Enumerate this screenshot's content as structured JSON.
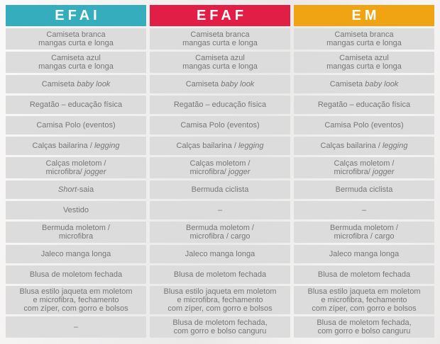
{
  "theme": {
    "page_background": "#f2f0ef",
    "cell_background": "#dcdcdc",
    "cell_text_color": "#767676",
    "header_text_color": "#ffffff"
  },
  "table": {
    "columns": [
      {
        "key": "efai",
        "label": "EFAI",
        "color": "#35adbc"
      },
      {
        "key": "efaf",
        "label": "EFAF",
        "color": "#e01e46"
      },
      {
        "key": "em",
        "label": "EM",
        "color": "#f0a414"
      }
    ],
    "rows": [
      {
        "cells": [
          [
            {
              "text": "Camiseta branca\nmangas curta e longa"
            }
          ],
          [
            {
              "text": "Camiseta branca\nmangas curta e longa"
            }
          ],
          [
            {
              "text": "Camiseta branca\nmangas curta e longa"
            }
          ]
        ]
      },
      {
        "cells": [
          [
            {
              "text": "Camiseta azul\nmangas curta e longa"
            }
          ],
          [
            {
              "text": "Camiseta azul\nmangas curta e longa"
            }
          ],
          [
            {
              "text": "Camiseta azul\nmangas curta e longa"
            }
          ]
        ]
      },
      {
        "cells": [
          [
            {
              "text": "Camiseta "
            },
            {
              "text": "baby look",
              "italic": true
            }
          ],
          [
            {
              "text": "Camiseta "
            },
            {
              "text": "baby look",
              "italic": true
            }
          ],
          [
            {
              "text": "Camiseta "
            },
            {
              "text": "baby look",
              "italic": true
            }
          ]
        ]
      },
      {
        "cells": [
          [
            {
              "text": "Regatão – educação física"
            }
          ],
          [
            {
              "text": "Regatão – educação física"
            }
          ],
          [
            {
              "text": "Regatão – educação física"
            }
          ]
        ]
      },
      {
        "cells": [
          [
            {
              "text": "Camisa Polo (eventos)"
            }
          ],
          [
            {
              "text": "Camisa Polo (eventos)"
            }
          ],
          [
            {
              "text": "Camisa Polo (eventos)"
            }
          ]
        ]
      },
      {
        "cells": [
          [
            {
              "text": "Calças bailarina / "
            },
            {
              "text": "legging",
              "italic": true
            }
          ],
          [
            {
              "text": "Calças bailarina / "
            },
            {
              "text": "legging",
              "italic": true
            }
          ],
          [
            {
              "text": "Calças bailarina / "
            },
            {
              "text": "legging",
              "italic": true
            }
          ]
        ]
      },
      {
        "cells": [
          [
            {
              "text": "Calças moletom /\nmicrofibra/ "
            },
            {
              "text": "jogger",
              "italic": true
            }
          ],
          [
            {
              "text": "Calças moletom /\nmicrofibra/ "
            },
            {
              "text": "jogger",
              "italic": true
            }
          ],
          [
            {
              "text": "Calças moletom /\nmicrofibra/ "
            },
            {
              "text": "jogger",
              "italic": true
            }
          ]
        ]
      },
      {
        "cells": [
          [
            {
              "text": "Short",
              "italic": true
            },
            {
              "text": "-saia"
            }
          ],
          [
            {
              "text": "Bermuda ciclista"
            }
          ],
          [
            {
              "text": "Bermuda ciclista"
            }
          ]
        ]
      },
      {
        "cells": [
          [
            {
              "text": "Vestido"
            }
          ],
          [
            {
              "text": "–"
            }
          ],
          [
            {
              "text": "–"
            }
          ]
        ]
      },
      {
        "cells": [
          [
            {
              "text": "Bermuda moletom /\nmicrofibra"
            }
          ],
          [
            {
              "text": "Bermuda moletom /\nmicrofibra / cargo"
            }
          ],
          [
            {
              "text": "Bermuda moletom /\nmicrofibra / cargo"
            }
          ]
        ]
      },
      {
        "cells": [
          [
            {
              "text": "Jaleco manga longa"
            }
          ],
          [
            {
              "text": "Jaleco manga longa"
            }
          ],
          [
            {
              "text": "Jaleco manga longa"
            }
          ]
        ]
      },
      {
        "cells": [
          [
            {
              "text": "Blusa de moletom fechada"
            }
          ],
          [
            {
              "text": "Blusa de moletom fechada"
            }
          ],
          [
            {
              "text": "Blusa de moletom fechada"
            }
          ]
        ]
      },
      {
        "cells": [
          [
            {
              "text": "Blusa estilo jaqueta em moletom\ne microfibra, fechamento\ncom zíper, com gorro e bolsos"
            }
          ],
          [
            {
              "text": "Blusa estilo jaqueta em moletom\ne microfibra, fechamento\ncom zíper, com gorro e bolsos"
            }
          ],
          [
            {
              "text": "Blusa estilo jaqueta em moletom\ne microfibra, fechamento\ncom zíper, com gorro e bolsos"
            }
          ]
        ]
      },
      {
        "cells": [
          [
            {
              "text": "–"
            }
          ],
          [
            {
              "text": "Blusa de moletom fechada,\ncom gorro e bolso canguru"
            }
          ],
          [
            {
              "text": "Blusa de moletom fechada,\ncom gorro e bolso canguru"
            }
          ]
        ]
      }
    ]
  }
}
